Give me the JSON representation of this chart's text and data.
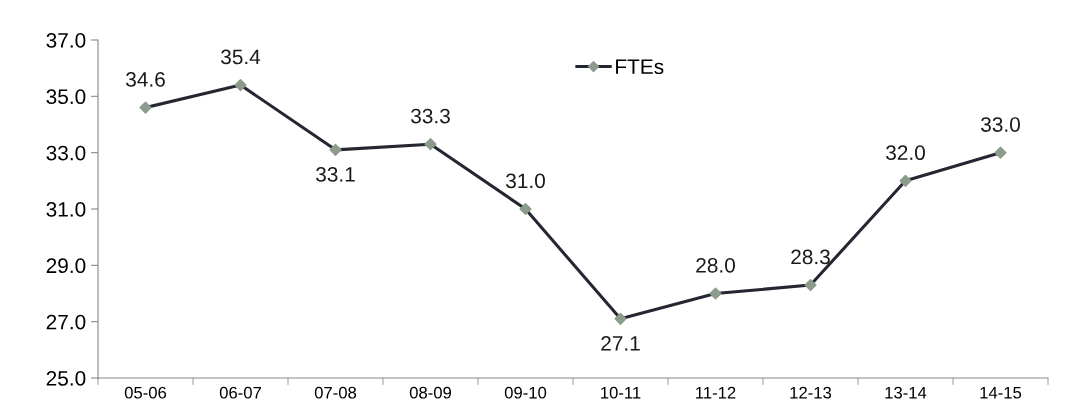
{
  "chart_data": {
    "type": "line",
    "categories": [
      "05-06",
      "06-07",
      "07-08",
      "08-09",
      "09-10",
      "10-11",
      "11-12",
      "12-13",
      "13-14",
      "14-15"
    ],
    "series": [
      {
        "name": "FTEs",
        "color": "#262633",
        "colors": [
          "#8c9c8c",
          "#8c9c8c",
          "#8c9c8c",
          "#8c9c8c",
          "#8c9c8c",
          "#8c9c8c",
          "#8c9c8c",
          "#8c9c8c",
          "#8c9c8c",
          "#8c9c8c"
        ],
        "values": [
          34.6,
          35.4,
          33.1,
          33.3,
          31.0,
          27.1,
          28.0,
          28.3,
          32.0,
          33.0
        ],
        "value_labels": [
          "34.6",
          "35.4",
          "33.1",
          "33.3",
          "31.0",
          "27.1",
          "28.0",
          "28.3",
          "32.0",
          "33.0"
        ]
      }
    ],
    "ylim": [
      25,
      37
    ],
    "yticks": [
      {
        "value": 25,
        "label": "25.0"
      },
      {
        "value": 27,
        "label": "27.0"
      },
      {
        "value": 29,
        "label": "29.0"
      },
      {
        "value": 31,
        "label": "31.0"
      },
      {
        "value": 33,
        "label": "33.0"
      },
      {
        "value": 35,
        "label": "35.0"
      },
      {
        "value": 37,
        "label": "37.0"
      }
    ],
    "grid": false,
    "legend": "top",
    "marker": "diamond",
    "line_style": "solid"
  }
}
